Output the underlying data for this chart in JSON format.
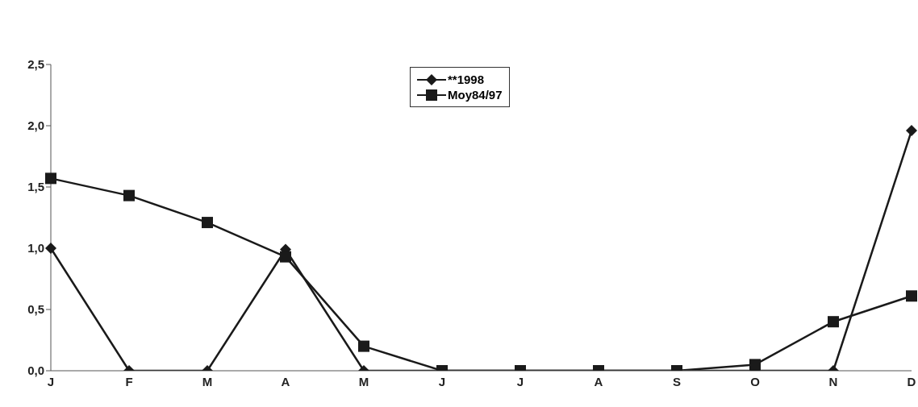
{
  "chart_data": {
    "type": "line",
    "categories": [
      "J",
      "F",
      "M",
      "A",
      "M",
      "J",
      "J",
      "A",
      "S",
      "O",
      "N",
      "D"
    ],
    "series": [
      {
        "name": "**1998",
        "color": "#1a1a1a",
        "marker": "diamond",
        "values": [
          1.0,
          0,
          0,
          0.99,
          0,
          0,
          0,
          0,
          0,
          0,
          0,
          1.96
        ]
      },
      {
        "name": "Moy84/97",
        "color": "#1a1a1a",
        "marker": "square",
        "values": [
          1.57,
          1.43,
          1.21,
          0.93,
          0.2,
          0,
          0,
          0,
          0,
          0.05,
          0.4,
          0.61
        ]
      }
    ],
    "ylim": [
      0,
      2.5
    ],
    "yticks": [
      {
        "value": 0,
        "label": "0,0"
      },
      {
        "value": 0.5,
        "label": "0,5"
      },
      {
        "value": 1,
        "label": "1,0"
      },
      {
        "value": 1.5,
        "label": "1,5"
      },
      {
        "value": 2,
        "label": "2,0"
      },
      {
        "value": 2.5,
        "label": "2,5"
      }
    ],
    "grid": false,
    "legend": "top",
    "line_style": "solid"
  }
}
